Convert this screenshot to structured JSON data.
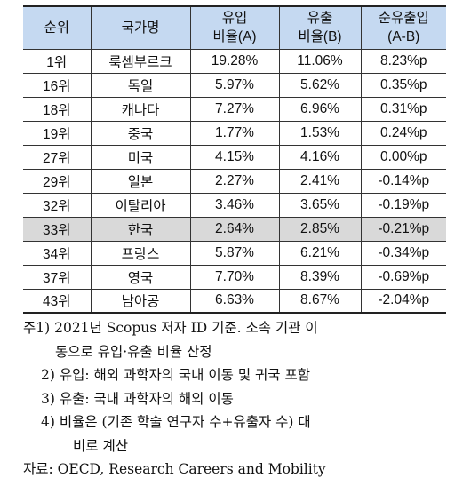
{
  "table": {
    "headers": {
      "rank": "순위",
      "country": "국가명",
      "inflow_line1": "유입",
      "inflow_line2": "비율(A)",
      "outflow_line1": "유출",
      "outflow_line2": "비율(B)",
      "net_line1": "순유출입",
      "net_line2": "(A-B)"
    },
    "rows": [
      {
        "rank": "1위",
        "country": "룩셈부르크",
        "inflow": "19.28%",
        "outflow": "11.06%",
        "net": "8.23%p"
      },
      {
        "rank": "16위",
        "country": "독일",
        "inflow": "5.97%",
        "outflow": "5.62%",
        "net": "0.35%p"
      },
      {
        "rank": "18위",
        "country": "캐나다",
        "inflow": "7.27%",
        "outflow": "6.96%",
        "net": "0.31%p"
      },
      {
        "rank": "19위",
        "country": "중국",
        "inflow": "1.77%",
        "outflow": "1.53%",
        "net": "0.24%p"
      },
      {
        "rank": "27위",
        "country": "미국",
        "inflow": "4.15%",
        "outflow": "4.16%",
        "net": "0.00%p"
      },
      {
        "rank": "29위",
        "country": "일본",
        "inflow": "2.27%",
        "outflow": "2.41%",
        "net": "-0.14%p"
      },
      {
        "rank": "32위",
        "country": "이탈리아",
        "inflow": "3.46%",
        "outflow": "3.65%",
        "net": "-0.19%p"
      },
      {
        "rank": "33위",
        "country": "한국",
        "inflow": "2.64%",
        "outflow": "2.85%",
        "net": "-0.21%p"
      },
      {
        "rank": "34위",
        "country": "프랑스",
        "inflow": "5.87%",
        "outflow": "6.21%",
        "net": "-0.34%p"
      },
      {
        "rank": "37위",
        "country": "영국",
        "inflow": "7.70%",
        "outflow": "8.39%",
        "net": "-0.69%p"
      },
      {
        "rank": "43위",
        "country": "남아공",
        "inflow": "6.63%",
        "outflow": "8.67%",
        "net": "-2.04%p"
      }
    ],
    "highlight_row_index": 7,
    "colors": {
      "header_bg": "#c5d9f1",
      "highlight_bg": "#d9d9d9"
    }
  },
  "notes": {
    "note1_line1": "주1) 2021년 Scopus 저자 ID 기준. 소속 기관 이",
    "note1_line2": "동으로 유입·유출 비율 산정",
    "note2": "2) 유입: 해외 과학자의 국내 이동 및 귀국 포함",
    "note3": "3) 유출: 국내 과학자의 해외 이동",
    "note4_line1": "4) 비율은 (기존 학술 연구자 수+유출자 수) 대",
    "note4_line2": "비로 계산",
    "source": "자료: OECD, Research Careers and Mobility"
  }
}
